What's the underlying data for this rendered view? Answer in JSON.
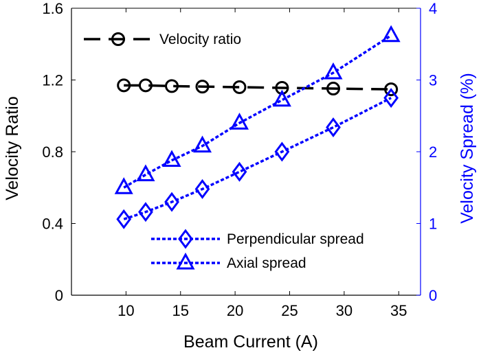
{
  "chart_data": {
    "type": "line",
    "title": "",
    "xlabel": "Beam Current (A)",
    "ylabel_left": "Velocity Ratio",
    "ylabel_right": "Velocity Spread (%)",
    "xlim": [
      5,
      37
    ],
    "ylim_left": [
      0,
      1.6
    ],
    "ylim_right": [
      0,
      4
    ],
    "x_ticks": [
      10,
      15,
      20,
      25,
      30,
      35
    ],
    "y_left_ticks": [
      0,
      0.4,
      0.8,
      1.2,
      1.6
    ],
    "y_left_tick_labels": [
      "0",
      "0.4",
      "0.8",
      "1.2",
      "1.6"
    ],
    "y_right_ticks": [
      0,
      1,
      2,
      3,
      4
    ],
    "grid": false,
    "legend_velocity_placement": "top-left",
    "legend_spread_placement": "bottom-right",
    "series": [
      {
        "name": "Velocity ratio",
        "axis": "left",
        "marker": "circle",
        "line_style": "dashed",
        "color": "#000000",
        "x": [
          9.8,
          11.8,
          14.2,
          17.0,
          20.4,
          24.3,
          29.0,
          34.3
        ],
        "y": [
          1.17,
          1.17,
          1.166,
          1.163,
          1.16,
          1.156,
          1.152,
          1.148
        ]
      },
      {
        "name": "Perpendicular spread",
        "axis": "right",
        "marker": "diamond",
        "line_style": "dotted",
        "color": "#0000ff",
        "x": [
          9.8,
          11.8,
          14.2,
          17.0,
          20.4,
          24.3,
          29.0,
          34.3
        ],
        "y": [
          1.06,
          1.16,
          1.3,
          1.48,
          1.72,
          2.0,
          2.34,
          2.75
        ]
      },
      {
        "name": "Axial spread",
        "axis": "right",
        "marker": "triangle",
        "line_style": "dotted",
        "color": "#0000ff",
        "x": [
          9.8,
          11.8,
          14.2,
          17.0,
          20.4,
          24.3,
          29.0,
          34.3
        ],
        "y": [
          1.5,
          1.68,
          1.88,
          2.08,
          2.4,
          2.72,
          3.1,
          3.62
        ]
      }
    ]
  }
}
